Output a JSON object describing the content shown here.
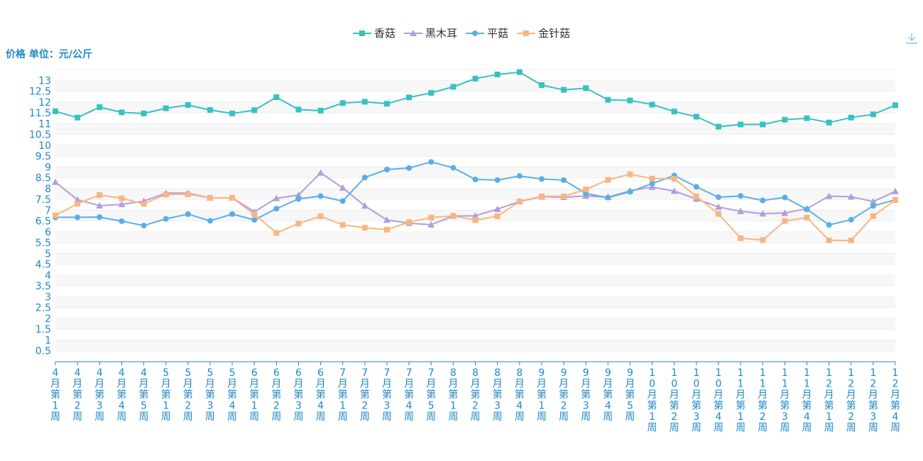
{
  "colors": {
    "axis_text": "#1e88c9",
    "grid": "#eeeeee",
    "band": "#f7f7f7",
    "香菇": "#36c2c0",
    "黑木耳": "#b39ddb",
    "平菇": "#5aaee8",
    "金针菇": "#f9b580"
  },
  "toolbar": {
    "download_icon": "download-icon"
  },
  "chart_data": {
    "type": "line",
    "ylabel": "价格 单位：元/公斤",
    "ylim": [
      0,
      13.5
    ],
    "yticks": [
      0.5,
      1,
      1.5,
      2,
      2.5,
      3,
      3.5,
      4,
      4.5,
      5,
      5.5,
      6,
      6.5,
      7,
      7.5,
      8,
      8.5,
      9,
      9.5,
      10,
      10.5,
      11,
      11.5,
      12,
      12.5,
      13
    ],
    "yticks_labels": [
      "0.5",
      "1",
      "1.5",
      "2",
      "2.5",
      "3",
      "3.5",
      "4",
      "4.5",
      "5",
      "5.5",
      "6",
      "6.5",
      "7",
      "7.5",
      "8",
      "8.5",
      "9",
      "9.5",
      "10",
      "10.5",
      "11",
      "11.5",
      "12",
      "12.5",
      "13"
    ],
    "legend_position": "top-center",
    "categories": [
      "4月第1周",
      "4月第2周",
      "4月第3周",
      "4月第4周",
      "4月第5周",
      "5月第1周",
      "5月第2周",
      "5月第3周",
      "5月第4周",
      "6月第1周",
      "6月第2周",
      "6月第3周",
      "6月第4周",
      "7月第1周",
      "7月第2周",
      "7月第3周",
      "7月第4周",
      "7月第5周",
      "8月第1周",
      "8月第2周",
      "8月第3周",
      "8月第4周",
      "9月第1周",
      "9月第2周",
      "9月第3周",
      "9月第4周",
      "9月第5周",
      "10月第1周",
      "10月第2周",
      "10月第3周",
      "10月第4周",
      "11月第1周",
      "11月第2周",
      "11月第3周",
      "11月第4周",
      "12月第1周",
      "12月第2周",
      "12月第3周",
      "12月第4周"
    ],
    "series": [
      {
        "name": "香菇",
        "marker": "square",
        "values": [
          11.57,
          11.28,
          11.76,
          11.52,
          11.47,
          11.71,
          11.86,
          11.63,
          11.47,
          11.62,
          12.22,
          11.65,
          11.6,
          11.95,
          12.01,
          11.92,
          12.21,
          12.42,
          12.7,
          13.08,
          13.27,
          13.38,
          12.78,
          12.56,
          12.64,
          12.1,
          12.07,
          11.88,
          11.56,
          11.32,
          10.86,
          10.96,
          10.96,
          11.18,
          11.25,
          11.05,
          11.28,
          11.43,
          11.85
        ]
      },
      {
        "name": "黑木耳",
        "marker": "triangle",
        "values": [
          8.3,
          7.48,
          7.21,
          7.27,
          7.42,
          7.79,
          7.79,
          7.57,
          7.57,
          6.93,
          7.55,
          7.7,
          8.73,
          8.03,
          7.2,
          6.55,
          6.4,
          6.33,
          6.73,
          6.74,
          7.05,
          7.4,
          7.62,
          7.6,
          7.66,
          7.6,
          7.9,
          8.07,
          7.88,
          7.52,
          7.15,
          6.95,
          6.84,
          6.87,
          7.07,
          7.65,
          7.62,
          7.4,
          7.87
        ]
      },
      {
        "name": "平菇",
        "marker": "circle",
        "values": [
          6.67,
          6.67,
          6.68,
          6.49,
          6.29,
          6.6,
          6.82,
          6.51,
          6.82,
          6.55,
          7.07,
          7.52,
          7.65,
          7.42,
          8.51,
          8.88,
          8.95,
          9.23,
          8.96,
          8.42,
          8.39,
          8.58,
          8.44,
          8.39,
          7.77,
          7.58,
          7.85,
          8.23,
          8.6,
          8.08,
          7.6,
          7.66,
          7.45,
          7.59,
          7.04,
          6.32,
          6.56,
          7.2,
          7.48
        ]
      },
      {
        "name": "金针菇",
        "marker": "square",
        "values": [
          6.76,
          7.3,
          7.7,
          7.55,
          7.29,
          7.73,
          7.74,
          7.57,
          7.57,
          6.82,
          5.95,
          6.38,
          6.72,
          6.32,
          6.19,
          6.1,
          6.45,
          6.66,
          6.74,
          6.54,
          6.72,
          7.41,
          7.64,
          7.64,
          7.96,
          8.4,
          8.66,
          8.46,
          8.45,
          7.64,
          6.83,
          5.71,
          5.62,
          6.5,
          6.66,
          5.61,
          5.6,
          6.73,
          7.47
        ]
      }
    ]
  }
}
